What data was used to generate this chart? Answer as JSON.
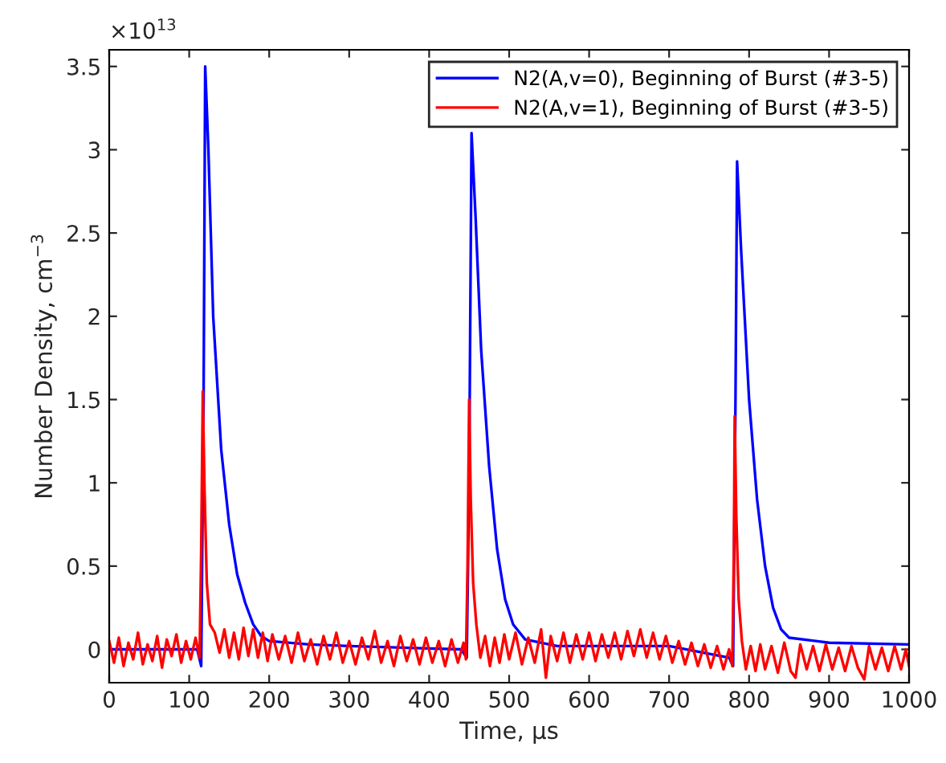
{
  "chart_data": {
    "type": "line",
    "xlabel": "Time, μs",
    "ylabel": "Number Density, cm$^{−3}$",
    "annotations": [
      "×10$^{13}$"
    ],
    "xlim": [
      0,
      1000
    ],
    "xticks": [
      0,
      100,
      200,
      300,
      400,
      500,
      600,
      700,
      800,
      900,
      1000
    ],
    "ylim": [
      -0.2,
      3.6
    ],
    "yticks": [
      0,
      0.5,
      1,
      1.5,
      2,
      2.5,
      3,
      3.5
    ],
    "grid": false,
    "legend": "top right",
    "line_style": "solid",
    "marker": "none",
    "series": [
      {
        "name": "N2(A,v=0), Beginning of Burst (#3-5)",
        "color": "#0000ff",
        "x": [
          0,
          110,
          115,
          118,
          120,
          124,
          130,
          140,
          150,
          160,
          170,
          180,
          190,
          200,
          250,
          300,
          440,
          447,
          450,
          453,
          458,
          465,
          475,
          485,
          495,
          505,
          520,
          560,
          700,
          775,
          780,
          783,
          785,
          790,
          800,
          810,
          820,
          830,
          840,
          850,
          900,
          1000
        ],
        "values": [
          0,
          0,
          -0.1,
          1.5,
          3.5,
          3.0,
          2.0,
          1.2,
          0.75,
          0.45,
          0.28,
          0.15,
          0.08,
          0.05,
          0.03,
          0.02,
          0,
          -0.05,
          1.0,
          3.1,
          2.6,
          1.8,
          1.1,
          0.6,
          0.3,
          0.15,
          0.06,
          0.02,
          0.02,
          -0.05,
          -0.1,
          1.5,
          2.93,
          2.4,
          1.5,
          0.9,
          0.5,
          0.25,
          0.12,
          0.07,
          0.04,
          0.03
        ]
      },
      {
        "name": "N2(A,v=1), Beginning of Burst (#3-5)",
        "color": "#ff0000",
        "x": [
          0,
          6,
          12,
          18,
          24,
          30,
          36,
          42,
          48,
          54,
          60,
          66,
          72,
          78,
          84,
          90,
          96,
          102,
          108,
          113,
          115,
          117,
          119,
          122,
          126,
          132,
          138,
          144,
          150,
          156,
          162,
          168,
          174,
          180,
          186,
          192,
          198,
          204,
          212,
          220,
          228,
          236,
          244,
          252,
          260,
          268,
          276,
          284,
          292,
          300,
          308,
          316,
          324,
          332,
          340,
          348,
          356,
          364,
          372,
          380,
          388,
          396,
          404,
          412,
          420,
          428,
          436,
          443,
          446,
          448,
          450,
          452,
          455,
          459,
          464,
          470,
          476,
          482,
          488,
          494,
          500,
          508,
          516,
          524,
          532,
          540,
          546,
          552,
          560,
          568,
          576,
          584,
          592,
          600,
          608,
          616,
          624,
          632,
          640,
          648,
          656,
          664,
          672,
          680,
          688,
          696,
          704,
          712,
          720,
          728,
          736,
          744,
          752,
          760,
          768,
          775,
          779,
          781,
          782,
          784,
          787,
          791,
          796,
          802,
          808,
          814,
          820,
          828,
          836,
          844,
          852,
          858,
          864,
          872,
          880,
          888,
          896,
          904,
          912,
          920,
          928,
          936,
          944,
          950,
          958,
          966,
          974,
          982,
          990,
          996,
          1000
        ],
        "values": [
          0.05,
          -0.08,
          0.07,
          -0.1,
          0.04,
          -0.06,
          0.1,
          -0.09,
          0.03,
          -0.07,
          0.08,
          -0.11,
          0.06,
          -0.04,
          0.09,
          -0.08,
          0.05,
          -0.06,
          0.07,
          -0.05,
          0.6,
          1.55,
          1.0,
          0.4,
          0.15,
          0.1,
          -0.02,
          0.12,
          -0.05,
          0.1,
          -0.06,
          0.13,
          -0.04,
          0.12,
          -0.05,
          0.1,
          -0.07,
          0.09,
          -0.06,
          0.08,
          -0.08,
          0.1,
          -0.07,
          0.06,
          -0.09,
          0.08,
          -0.06,
          0.1,
          -0.08,
          0.05,
          -0.09,
          0.07,
          -0.06,
          0.11,
          -0.08,
          0.05,
          -0.1,
          0.08,
          -0.07,
          0.06,
          -0.09,
          0.07,
          -0.08,
          0.05,
          -0.1,
          0.06,
          -0.08,
          0.04,
          -0.06,
          0.5,
          1.5,
          0.9,
          0.4,
          0.15,
          -0.05,
          0.08,
          -0.1,
          0.07,
          -0.08,
          0.09,
          -0.06,
          0.1,
          -0.09,
          0.07,
          -0.08,
          0.12,
          -0.17,
          0.08,
          -0.07,
          0.1,
          -0.08,
          0.09,
          -0.06,
          0.1,
          -0.07,
          0.09,
          -0.05,
          0.1,
          -0.06,
          0.11,
          -0.04,
          0.12,
          -0.05,
          0.1,
          -0.06,
          0.08,
          -0.08,
          0.05,
          -0.09,
          0.04,
          -0.1,
          0.03,
          -0.11,
          0.02,
          -0.12,
          0.0,
          -0.1,
          0.6,
          1.4,
          0.8,
          0.3,
          0.05,
          -0.12,
          0.02,
          -0.13,
          0.03,
          -0.12,
          0.02,
          -0.14,
          0.04,
          -0.13,
          -0.17,
          0.03,
          -0.12,
          0.02,
          -0.13,
          0.03,
          -0.12,
          0.01,
          -0.13,
          0.02,
          -0.11,
          -0.18,
          0.02,
          -0.12,
          0.01,
          -0.13,
          0.02,
          -0.12,
          0.0,
          -0.1
        ]
      }
    ]
  }
}
